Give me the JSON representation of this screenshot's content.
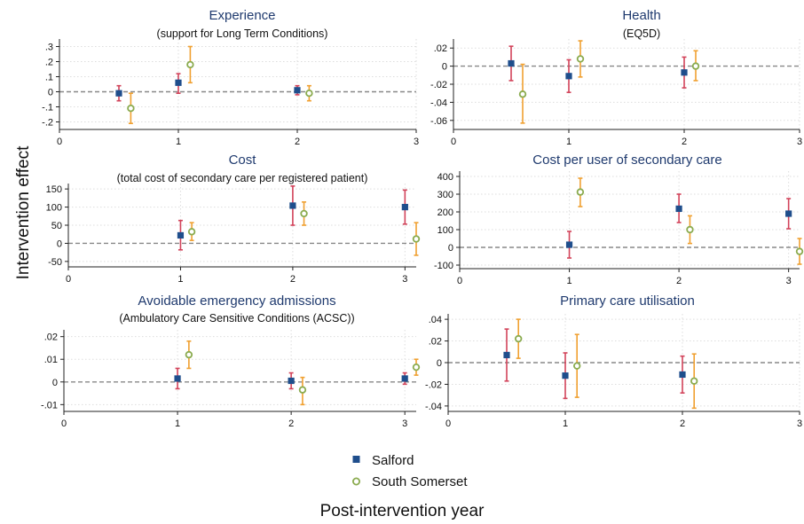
{
  "figure": {
    "y_label": "Intervention effect",
    "x_label": "Post-intervention year",
    "legend": [
      {
        "name": "Salford",
        "marker": "square",
        "color": "#1f4e8c"
      },
      {
        "name": "South Somerset",
        "marker": "circle",
        "color": "#8aab4f"
      }
    ]
  },
  "colors": {
    "salford_marker": "#1f4e8c",
    "salford_ci": "#d2435a",
    "somerset_marker": "#8aab4f",
    "somerset_ci": "#f0a030",
    "zero_line": "#888888",
    "grid": "#dddddd"
  },
  "chart_data": [
    {
      "type": "scatter",
      "title": "Experience",
      "subtitle": "(support for Long Term Conditions)",
      "xlim": [
        0,
        3
      ],
      "ylim": [
        -0.25,
        0.35
      ],
      "x_ticks": [
        "0",
        "1",
        "2",
        "3"
      ],
      "y_ticks": [
        {
          "v": 0.3,
          "l": ".3"
        },
        {
          "v": 0.2,
          "l": ".2"
        },
        {
          "v": 0.1,
          "l": ".1"
        },
        {
          "v": 0,
          "l": "0"
        },
        {
          "v": -0.1,
          "l": "-.1"
        },
        {
          "v": -0.2,
          "l": "-.2"
        }
      ],
      "series": [
        {
          "name": "Salford",
          "points": [
            {
              "x": 0.5,
              "y": -0.01,
              "lo": -0.06,
              "hi": 0.04
            },
            {
              "x": 1.0,
              "y": 0.06,
              "lo": -0.01,
              "hi": 0.12
            },
            {
              "x": 2.0,
              "y": 0.01,
              "lo": -0.02,
              "hi": 0.04
            }
          ]
        },
        {
          "name": "South Somerset",
          "points": [
            {
              "x": 0.6,
              "y": -0.11,
              "lo": -0.21,
              "hi": -0.01
            },
            {
              "x": 1.1,
              "y": 0.18,
              "lo": 0.06,
              "hi": 0.3
            },
            {
              "x": 2.1,
              "y": -0.01,
              "lo": -0.06,
              "hi": 0.04
            }
          ]
        }
      ]
    },
    {
      "type": "scatter",
      "title": "Health",
      "subtitle": "(EQ5D)",
      "xlim": [
        0,
        3
      ],
      "ylim": [
        -0.07,
        0.03
      ],
      "x_ticks": [
        "0",
        "1",
        "2",
        "3"
      ],
      "y_ticks": [
        {
          "v": 0.02,
          "l": ".02"
        },
        {
          "v": 0,
          "l": "0"
        },
        {
          "v": -0.02,
          "l": "-.02"
        },
        {
          "v": -0.04,
          "l": "-.04"
        },
        {
          "v": -0.06,
          "l": "-.06"
        }
      ],
      "series": [
        {
          "name": "Salford",
          "points": [
            {
              "x": 0.5,
              "y": 0.003,
              "lo": -0.016,
              "hi": 0.022
            },
            {
              "x": 1.0,
              "y": -0.011,
              "lo": -0.029,
              "hi": 0.007
            },
            {
              "x": 2.0,
              "y": -0.007,
              "lo": -0.024,
              "hi": 0.01
            }
          ]
        },
        {
          "name": "South Somerset",
          "points": [
            {
              "x": 0.6,
              "y": -0.031,
              "lo": -0.063,
              "hi": 0.002
            },
            {
              "x": 1.1,
              "y": 0.008,
              "lo": -0.012,
              "hi": 0.028
            },
            {
              "x": 2.1,
              "y": 0.0,
              "lo": -0.016,
              "hi": 0.017
            }
          ]
        }
      ]
    },
    {
      "type": "scatter",
      "title": "Cost",
      "subtitle": "(total cost of secondary care per registered patient)",
      "xlim": [
        0,
        3.1
      ],
      "ylim": [
        -65,
        165
      ],
      "x_ticks": [
        "0",
        "1",
        "2",
        "3"
      ],
      "y_ticks": [
        {
          "v": 150,
          "l": "150"
        },
        {
          "v": 100,
          "l": "100"
        },
        {
          "v": 50,
          "l": "50"
        },
        {
          "v": 0,
          "l": "0"
        },
        {
          "v": -50,
          "l": "-50"
        }
      ],
      "series": [
        {
          "name": "Salford",
          "points": [
            {
              "x": 1.0,
              "y": 22,
              "lo": -18,
              "hi": 63
            },
            {
              "x": 2.0,
              "y": 104,
              "lo": 50,
              "hi": 158
            },
            {
              "x": 3.0,
              "y": 100,
              "lo": 53,
              "hi": 147
            }
          ]
        },
        {
          "name": "South Somerset",
          "points": [
            {
              "x": 1.1,
              "y": 32,
              "lo": 8,
              "hi": 57
            },
            {
              "x": 2.1,
              "y": 82,
              "lo": 50,
              "hi": 114
            },
            {
              "x": 3.1,
              "y": 12,
              "lo": -33,
              "hi": 57
            }
          ]
        }
      ]
    },
    {
      "type": "scatter",
      "title": "Cost per user of secondary care",
      "subtitle": "",
      "xlim": [
        0,
        3.1
      ],
      "ylim": [
        -120,
        430
      ],
      "x_ticks": [
        "0",
        "1",
        "2",
        "3"
      ],
      "y_ticks": [
        {
          "v": 400,
          "l": "400"
        },
        {
          "v": 300,
          "l": "300"
        },
        {
          "v": 200,
          "l": "200"
        },
        {
          "v": 100,
          "l": "100"
        },
        {
          "v": 0,
          "l": "0"
        },
        {
          "v": -100,
          "l": "-100"
        }
      ],
      "series": [
        {
          "name": "Salford",
          "points": [
            {
              "x": 1.0,
              "y": 15,
              "lo": -60,
              "hi": 90
            },
            {
              "x": 2.0,
              "y": 218,
              "lo": 140,
              "hi": 300
            },
            {
              "x": 3.0,
              "y": 190,
              "lo": 105,
              "hi": 275
            }
          ]
        },
        {
          "name": "South Somerset",
          "points": [
            {
              "x": 1.1,
              "y": 312,
              "lo": 230,
              "hi": 390
            },
            {
              "x": 2.1,
              "y": 100,
              "lo": 22,
              "hi": 178
            },
            {
              "x": 3.1,
              "y": -23,
              "lo": -95,
              "hi": 50
            }
          ]
        }
      ]
    },
    {
      "type": "scatter",
      "title": "Avoidable emergency admissions",
      "subtitle": "(Ambulatory Care Sensitive Conditions (ACSC))",
      "xlim": [
        0,
        3.1
      ],
      "ylim": [
        -0.013,
        0.023
      ],
      "x_ticks": [
        "0",
        "1",
        "2",
        "3"
      ],
      "y_ticks": [
        {
          "v": 0.02,
          "l": ".02"
        },
        {
          "v": 0.01,
          "l": ".01"
        },
        {
          "v": 0,
          "l": "0"
        },
        {
          "v": -0.01,
          "l": "-.01"
        }
      ],
      "series": [
        {
          "name": "Salford",
          "points": [
            {
              "x": 1.0,
              "y": 0.0015,
              "lo": -0.003,
              "hi": 0.006
            },
            {
              "x": 2.0,
              "y": 0.0005,
              "lo": -0.003,
              "hi": 0.004
            },
            {
              "x": 3.0,
              "y": 0.0015,
              "lo": -0.001,
              "hi": 0.004
            }
          ]
        },
        {
          "name": "South Somerset",
          "points": [
            {
              "x": 1.1,
              "y": 0.012,
              "lo": 0.006,
              "hi": 0.018
            },
            {
              "x": 2.1,
              "y": -0.0035,
              "lo": -0.01,
              "hi": 0.002
            },
            {
              "x": 3.1,
              "y": 0.0065,
              "lo": 0.003,
              "hi": 0.01
            }
          ]
        }
      ]
    },
    {
      "type": "scatter",
      "title": "Primary care utilisation",
      "subtitle": "",
      "xlim": [
        0,
        3
      ],
      "ylim": [
        -0.045,
        0.045
      ],
      "x_ticks": [
        "0",
        "1",
        "2",
        "3"
      ],
      "y_ticks": [
        {
          "v": 0.04,
          "l": ".04"
        },
        {
          "v": 0.02,
          "l": ".02"
        },
        {
          "v": 0,
          "l": "0"
        },
        {
          "v": -0.02,
          "l": "-.02"
        },
        {
          "v": -0.04,
          "l": "-.04"
        }
      ],
      "series": [
        {
          "name": "Salford",
          "points": [
            {
              "x": 0.5,
              "y": 0.007,
              "lo": -0.017,
              "hi": 0.031
            },
            {
              "x": 1.0,
              "y": -0.012,
              "lo": -0.033,
              "hi": 0.009
            },
            {
              "x": 2.0,
              "y": -0.011,
              "lo": -0.028,
              "hi": 0.006
            }
          ]
        },
        {
          "name": "South Somerset",
          "points": [
            {
              "x": 0.6,
              "y": 0.022,
              "lo": 0.004,
              "hi": 0.04
            },
            {
              "x": 1.1,
              "y": -0.003,
              "lo": -0.032,
              "hi": 0.026
            },
            {
              "x": 2.1,
              "y": -0.017,
              "lo": -0.042,
              "hi": 0.008
            }
          ]
        }
      ]
    }
  ]
}
